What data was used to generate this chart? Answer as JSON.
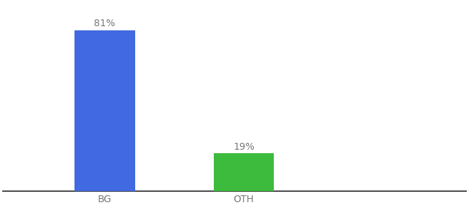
{
  "categories": [
    "BG",
    "OTH"
  ],
  "values": [
    81,
    19
  ],
  "bar_colors": [
    "#4169e1",
    "#3dbb3d"
  ],
  "labels": [
    "81%",
    "19%"
  ],
  "background_color": "#ffffff",
  "text_color": "#777777",
  "label_fontsize": 10,
  "tick_fontsize": 10,
  "ylim": [
    0,
    95
  ],
  "bar_width": 0.13,
  "x_positions": [
    0.22,
    0.52
  ],
  "xlim": [
    0.0,
    1.0
  ]
}
